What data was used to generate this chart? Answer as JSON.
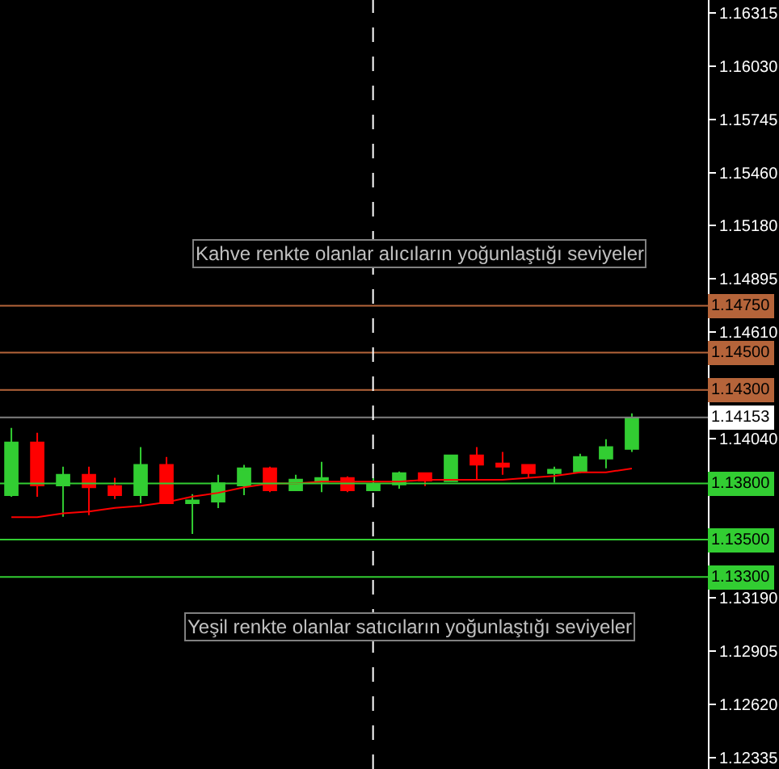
{
  "chart_data": {
    "type": "candlestick",
    "categories": [
      null,
      null,
      null,
      null,
      null,
      null,
      null,
      null,
      null,
      null,
      null,
      null,
      null,
      null,
      null,
      null,
      null,
      null,
      null,
      null,
      null,
      null,
      null,
      null,
      null
    ],
    "ohlc": [
      [
        1.13737,
        1.14097,
        1.13729,
        1.14019
      ],
      [
        1.14019,
        1.14071,
        1.13729,
        1.13789
      ],
      [
        1.13789,
        1.1389,
        1.13622,
        1.13847
      ],
      [
        1.13847,
        1.1389,
        1.13631,
        1.1378
      ],
      [
        1.13786,
        1.1383,
        1.13717,
        1.13737
      ],
      [
        1.13737,
        1.13994,
        1.13694,
        1.13899
      ],
      [
        1.13899,
        1.13942,
        1.13694,
        1.13694
      ],
      [
        1.13694,
        1.13743,
        1.1353,
        1.13709
      ],
      [
        1.13703,
        1.13847,
        1.13668,
        1.13801
      ],
      [
        1.13789,
        1.13899,
        1.13737,
        1.13881
      ],
      [
        1.13881,
        1.1389,
        1.13754,
        1.13763
      ],
      [
        1.13763,
        1.13847,
        1.13763,
        1.13821
      ],
      [
        1.13809,
        1.13916,
        1.13754,
        1.13829
      ],
      [
        1.13829,
        1.13838,
        1.13754,
        1.13763
      ],
      [
        1.13763,
        1.13829,
        1.13763,
        1.13795
      ],
      [
        1.13795,
        1.13864,
        1.13772,
        1.13855
      ],
      [
        1.13855,
        1.13855,
        1.13786,
        1.13815
      ],
      [
        1.13812,
        1.1395,
        1.13812,
        1.1395
      ],
      [
        1.1395,
        1.13994,
        1.13821,
        1.13901
      ],
      [
        1.13907,
        1.13968,
        1.13847,
        1.1389
      ],
      [
        1.13899,
        1.13899,
        1.13829,
        1.13855
      ],
      [
        1.13855,
        1.1389,
        1.13804,
        1.13873
      ],
      [
        1.13864,
        1.13959,
        1.13855,
        1.13942
      ],
      [
        1.13933,
        1.14037,
        1.13881,
        1.13994
      ],
      [
        1.13985,
        1.14175,
        1.13968,
        1.14149
      ]
    ],
    "series": [
      {
        "type": "line",
        "color": "#ff0000",
        "values": [
          1.1362,
          1.1362,
          1.1364,
          1.1365,
          1.1367,
          1.1368,
          1.137,
          1.1373,
          1.1375,
          1.1378,
          1.138,
          1.138,
          1.1381,
          1.1381,
          1.1381,
          1.1381,
          1.1382,
          1.1382,
          1.1382,
          1.1382,
          1.1383,
          1.1384,
          1.1386,
          1.1386,
          1.1388
        ]
      }
    ],
    "colors": [
      "#32cd32",
      "#ff0000",
      "#32cd32",
      "#ff0000",
      "#ff0000",
      "#32cd32",
      "#ff0000",
      "#32cd32",
      "#32cd32",
      "#32cd32",
      "#ff0000",
      "#32cd32",
      "#32cd32",
      "#ff0000",
      "#32cd32",
      "#32cd32",
      "#ff0000",
      "#32cd32",
      "#ff0000",
      "#ff0000",
      "#ff0000",
      "#32cd32",
      "#32cd32",
      "#32cd32",
      "#32cd32"
    ],
    "ylim": [
      1.12274,
      1.16384
    ],
    "yticks": [
      1.16315,
      {
        "value": 1.1603,
        "label": "1.16030"
      },
      1.15745,
      {
        "value": 1.1546,
        "label": "1.15460"
      },
      {
        "value": 1.1518,
        "label": "1.15180"
      },
      1.14895,
      {
        "value": 1.1461,
        "label": "1.14610"
      },
      {
        "value": 1.1404,
        "label": "1.14040"
      },
      {
        "value": 1.1319,
        "label": "1.13190"
      },
      1.12905,
      {
        "value": 1.1262,
        "label": "1.12620"
      },
      1.12335
    ],
    "ref_lines": [
      {
        "axis": "y",
        "value": 1.1475,
        "label": "1.14750",
        "color": "#b5643a"
      },
      {
        "axis": "y",
        "value": 1.145,
        "label": "1.14500",
        "color": "#b5643a"
      },
      {
        "axis": "y",
        "value": 1.143,
        "label": "1.14300",
        "color": "#b5643a"
      },
      {
        "axis": "y",
        "value": 1.14153,
        "label": "1.14153",
        "color": "#808080"
      },
      {
        "axis": "y",
        "value": 1.138,
        "label": "1.13800",
        "color": "#32cd32"
      },
      {
        "axis": "y",
        "value": 1.135,
        "label": "1.13500",
        "color": "#32cd32"
      },
      {
        "axis": "y",
        "value": 1.133,
        "label": "1.13300",
        "color": "#32cd32"
      }
    ],
    "annotations": [
      "Kahve renkte olanlar alıcıların yoğunlaştığı seviyeler",
      "Yeşil renkte olanlar satıcıların yoğunlaştığı seviyeler"
    ],
    "grid": false
  }
}
